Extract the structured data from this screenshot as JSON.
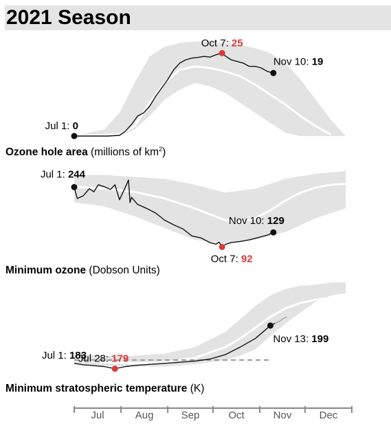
{
  "page": {
    "title": "2021 Season"
  },
  "colors": {
    "band": "#e3e3e3",
    "median": "#ffffff",
    "line": "#111111",
    "highlight": "#d93a3a",
    "axis": "#888888"
  },
  "chart_data": [
    {
      "type": "line",
      "id": "area",
      "title": "Ozone hole area",
      "unit": "(millions of km²)",
      "unit_pre": "(millions of km",
      "unit_sup": "2",
      "unit_post": ")",
      "ylim": [
        0,
        29
      ],
      "x_months": [
        "Jul",
        "Aug",
        "Sep",
        "Oct",
        "Nov",
        "Dec"
      ],
      "range_band": {
        "x": [
          0,
          20,
          30,
          40,
          50,
          60,
          70,
          80,
          90,
          100,
          110,
          120,
          130,
          140,
          150,
          160,
          170,
          180
        ],
        "min": [
          0,
          0,
          0,
          2,
          6,
          11,
          14,
          16,
          15,
          13,
          10,
          7,
          4,
          1,
          0,
          0,
          0,
          0
        ],
        "max": [
          0,
          2,
          7,
          16,
          24,
          27,
          28,
          28.5,
          28.5,
          28,
          27.5,
          26.5,
          25,
          22,
          17,
          11,
          5,
          0
        ]
      },
      "median": {
        "x": [
          0,
          30,
          40,
          50,
          60,
          70,
          80,
          90,
          100,
          110,
          120,
          130,
          140,
          150,
          160,
          170
        ],
        "y": [
          0,
          0.5,
          3,
          10,
          16,
          20,
          21,
          20.5,
          19.5,
          18,
          15.5,
          12.5,
          9.5,
          6,
          3,
          0.5
        ]
      },
      "series": [
        {
          "x": [
            0,
            12,
            22,
            30,
            34,
            38,
            42,
            46,
            50,
            54,
            58,
            62,
            66,
            70,
            74,
            78,
            82,
            86,
            90,
            94,
            98,
            100,
            104,
            108,
            112,
            116,
            120,
            124,
            128,
            132
          ],
          "y": [
            0,
            0,
            0,
            0.2,
            1.5,
            3.5,
            6,
            7,
            9,
            12,
            14.5,
            17,
            20,
            22,
            23,
            23.5,
            23.7,
            24,
            23.8,
            24.5,
            25,
            24.2,
            23,
            22.5,
            22,
            21,
            21,
            20.5,
            19.5,
            19
          ]
        }
      ],
      "annotations": [
        {
          "label": "Jul 1:",
          "value": "0",
          "x": 0,
          "y": 0,
          "highlight": false
        },
        {
          "label": "Oct 7:",
          "value": "25",
          "x": 98,
          "y": 25,
          "highlight": true
        },
        {
          "label": "Nov 10:",
          "value": "19",
          "x": 132,
          "y": 19,
          "highlight": false
        }
      ]
    },
    {
      "type": "line",
      "id": "ozone",
      "title": "Minimum ozone",
      "unit": "(Dobson Units)",
      "ylim": [
        70,
        290
      ],
      "range_band": {
        "x": [
          0,
          20,
          40,
          60,
          80,
          100,
          120,
          140,
          160,
          180
        ],
        "min": [
          205,
          195,
          170,
          140,
          110,
          100,
          110,
          130,
          165,
          190
        ],
        "max": [
          275,
          275,
          270,
          265,
          250,
          230,
          240,
          265,
          278,
          285
        ]
      },
      "median": {
        "x": [
          0,
          20,
          40,
          60,
          80,
          100,
          110,
          120,
          130,
          140,
          150,
          160,
          170,
          180
        ],
        "y": [
          245,
          240,
          232,
          215,
          190,
          160,
          155,
          165,
          185,
          210,
          230,
          243,
          250,
          252
        ]
      },
      "series": [
        {
          "x": [
            0,
            2,
            6,
            10,
            13,
            16,
            20,
            24,
            27,
            30,
            34,
            36,
            37,
            38,
            42,
            48,
            54,
            60,
            66,
            72,
            78,
            84,
            90,
            94,
            96,
            98,
            100,
            104,
            110,
            116,
            122,
            128,
            132
          ],
          "y": [
            244,
            215,
            222,
            240,
            232,
            250,
            245,
            238,
            250,
            212,
            245,
            262,
            205,
            218,
            200,
            190,
            178,
            160,
            148,
            138,
            120,
            115,
            103,
            99,
            104,
            92,
            98,
            103,
            106,
            110,
            116,
            122,
            129
          ]
        }
      ],
      "annotations": [
        {
          "label": "Jul 1:",
          "value": "244",
          "x": 0,
          "y": 244,
          "highlight": false
        },
        {
          "label": "Oct 7:",
          "value": "92",
          "x": 98,
          "y": 92,
          "highlight": true
        },
        {
          "label": "Nov 10:",
          "value": "129",
          "x": 132,
          "y": 129,
          "highlight": false
        }
      ]
    },
    {
      "type": "line",
      "id": "temp",
      "title": "Minimum stratospheric temperature",
      "unit": "(K)",
      "ylim": [
        176,
        220
      ],
      "reference_line": {
        "label": "Jul 1:",
        "value": "183",
        "y": 183
      },
      "range_band": {
        "x": [
          0,
          20,
          40,
          60,
          80,
          100,
          110,
          120,
          130,
          140,
          150,
          160,
          170,
          180
        ],
        "min": [
          181,
          180.5,
          180,
          180,
          181,
          183,
          185,
          188,
          194,
          200,
          205,
          210,
          213,
          214
        ],
        "max": [
          186,
          185,
          185,
          186,
          189,
          196,
          202,
          208,
          213,
          216,
          217.5,
          218,
          219,
          219
        ]
      },
      "median": {
        "x": [
          0,
          20,
          40,
          60,
          80,
          100,
          110,
          120,
          130,
          140,
          150,
          160,
          170,
          180
        ],
        "y": [
          183,
          182,
          181.5,
          182,
          184,
          189,
          193,
          198,
          203,
          207,
          209.5,
          211,
          212,
          212.5
        ]
      },
      "series": [
        {
          "x": [
            0,
            6,
            12,
            20,
            27,
            34,
            40,
            50,
            60,
            70,
            80,
            90,
            100,
            110,
            120,
            125,
            130,
            133
          ],
          "y": [
            181.5,
            180.8,
            180.5,
            180,
            179,
            180,
            180.5,
            181,
            181.5,
            182,
            182.5,
            183.5,
            185.5,
            189,
            193,
            196,
            199,
            200
          ]
        }
      ],
      "continuation": {
        "x": [
          133,
          136,
          139,
          141
        ],
        "y": [
          200,
          201,
          202.5,
          203
        ]
      },
      "annotations": [
        {
          "label": "Jul 28:",
          "value": "179",
          "x": 27,
          "y": 179,
          "highlight": true
        },
        {
          "label": "Nov 13:",
          "value": "199",
          "x": 130,
          "y": 199,
          "highlight": false
        }
      ]
    }
  ],
  "x_axis": {
    "months": [
      "Jul",
      "Aug",
      "Sep",
      "Oct",
      "Nov",
      "Dec"
    ],
    "month_lengths": [
      31,
      31,
      30,
      31,
      30,
      31
    ]
  }
}
